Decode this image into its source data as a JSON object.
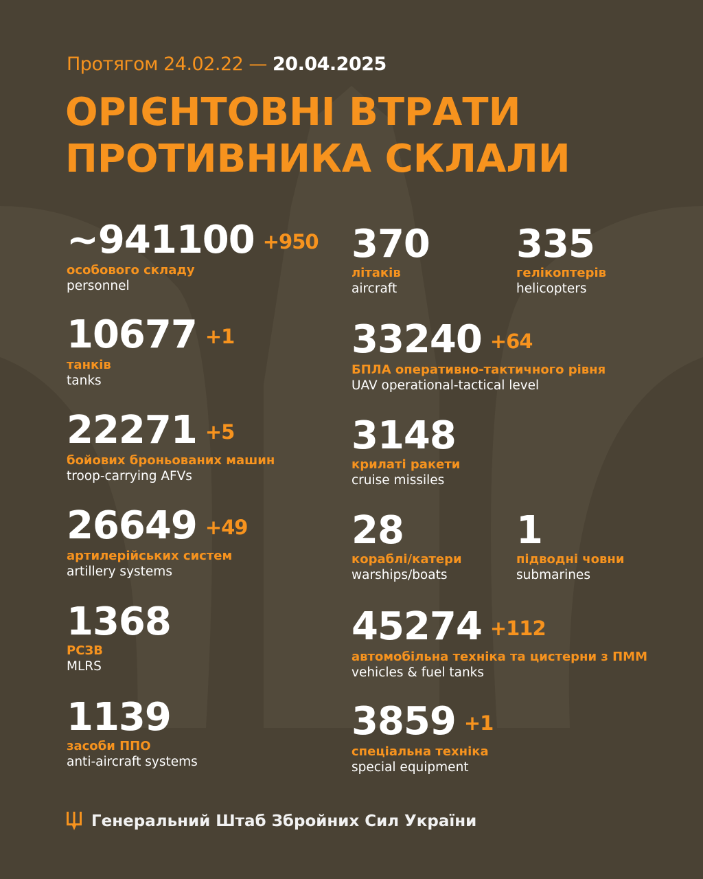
{
  "header": {
    "period_prefix": "Протягом 24.02.22 —",
    "period_end": "20.04.2025",
    "title_line1": "ОРІЄНТОВНІ ВТРАТИ",
    "title_line2": "ПРОТИВНИКА СКЛАЛИ"
  },
  "colors": {
    "background": "#4a4234",
    "accent": "#f7931e",
    "text": "#ffffff"
  },
  "stats": [
    {
      "value": "~941100",
      "delta": "+950",
      "uk": "особового складу",
      "en": "personnel"
    },
    {
      "value": "10677",
      "delta": "+1",
      "uk": "танків",
      "en": "tanks"
    },
    {
      "value": "22271",
      "delta": "+5",
      "uk": "бойових броньованих машин",
      "en": "troop-carrying AFVs"
    },
    {
      "value": "26649",
      "delta": "+49",
      "uk": "артилерійських систем",
      "en": "artillery systems"
    },
    {
      "value": "1368",
      "delta": "",
      "uk": "РСЗВ",
      "en": "MLRS"
    },
    {
      "value": "1139",
      "delta": "",
      "uk": "засоби ППО",
      "en": "anti-aircraft systems"
    },
    {
      "value": "370",
      "delta": "",
      "uk": "літаків",
      "en": "aircraft"
    },
    {
      "value": "335",
      "delta": "",
      "uk": "гелікоптерів",
      "en": "helicopters"
    },
    {
      "value": "33240",
      "delta": "+64",
      "uk": "БПЛА оперативно-тактичного рівня",
      "en": "UAV operational-tactical level"
    },
    {
      "value": "3148",
      "delta": "",
      "uk": "крилаті ракети",
      "en": "cruise missiles"
    },
    {
      "value": "28",
      "delta": "",
      "uk": "кораблі/катери",
      "en": "warships/boats"
    },
    {
      "value": "1",
      "delta": "",
      "uk": "підводні човни",
      "en": "submarines"
    },
    {
      "value": "45274",
      "delta": "+112",
      "uk": "автомобільна техніка та цистерни з ПММ",
      "en": "vehicles & fuel tanks"
    },
    {
      "value": "3859",
      "delta": "+1",
      "uk": "спеціальна техніка",
      "en": "special equipment"
    }
  ],
  "footer": {
    "org": "Генеральний Штаб Збройних Сил України",
    "icon": "trident-icon"
  }
}
